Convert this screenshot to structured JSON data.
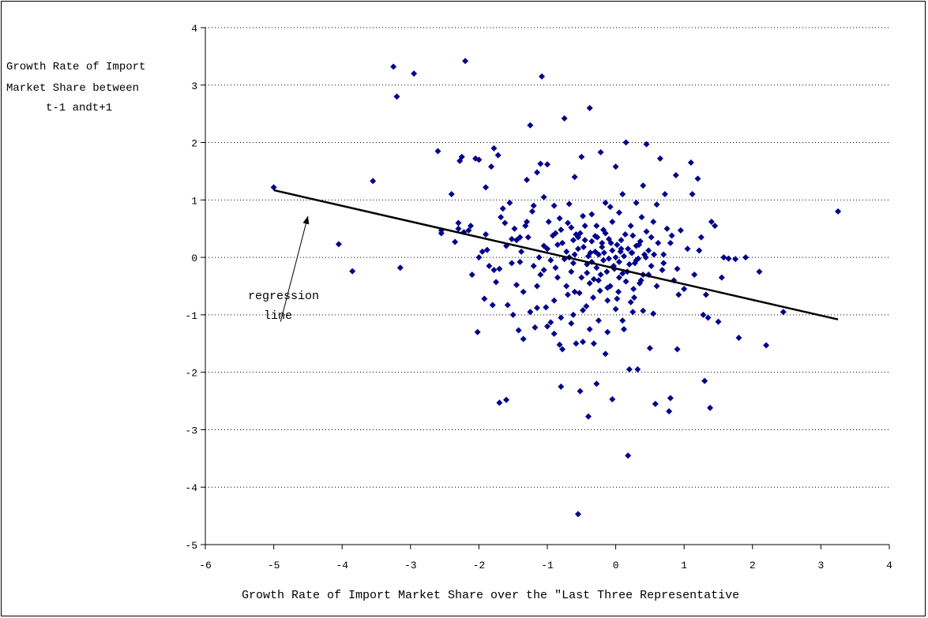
{
  "chart_data": {
    "type": "scatter",
    "title": "",
    "xlabel": "Growth Rate of Import Market Share over the \"Last Three Representative",
    "ylabel_lines": [
      "Growth Rate of Import",
      "Market Share between",
      "t-1 andt+1"
    ],
    "xlim": [
      -6,
      4
    ],
    "ylim": [
      -5,
      4
    ],
    "x_ticks": [
      "-6",
      "-5",
      "-4",
      "-3",
      "-2",
      "-1",
      "0",
      "1",
      "2",
      "3",
      "4"
    ],
    "y_ticks": [
      "-5",
      "-4",
      "-3",
      "-2",
      "-1",
      "0",
      "1",
      "2",
      "3",
      "4"
    ],
    "grid": "horizontal dotted",
    "legend": "none",
    "colors": {
      "points": "#00008B",
      "line": "#000000",
      "grid": "#000000"
    },
    "regression_line": {
      "x": [
        -5.0,
        3.25
      ],
      "y": [
        1.17,
        -1.08
      ]
    },
    "annotation": {
      "text_lines": [
        "regression",
        "line"
      ],
      "arrow_to": [
        -4.5,
        0.72
      ],
      "arrow_from": [
        -4.9,
        -1.12
      ]
    },
    "points": [
      [
        -5.0,
        1.22
      ],
      [
        -4.05,
        0.23
      ],
      [
        -3.85,
        -0.24
      ],
      [
        -3.55,
        1.33
      ],
      [
        -3.25,
        3.32
      ],
      [
        -3.15,
        -0.18
      ],
      [
        -3.2,
        2.8
      ],
      [
        -2.95,
        3.2
      ],
      [
        -2.6,
        1.85
      ],
      [
        -2.55,
        0.42
      ],
      [
        -2.55,
        0.47
      ],
      [
        -2.4,
        1.1
      ],
      [
        -2.35,
        0.27
      ],
      [
        -2.3,
        0.5
      ],
      [
        -2.28,
        1.68
      ],
      [
        -2.25,
        1.75
      ],
      [
        -2.22,
        0.44
      ],
      [
        -2.2,
        3.42
      ],
      [
        -2.15,
        0.47
      ],
      [
        -2.12,
        0.55
      ],
      [
        -2.05,
        1.72
      ],
      [
        -2.02,
        -1.3
      ],
      [
        -2.0,
        1.7
      ],
      [
        -1.95,
        0.1
      ],
      [
        -1.92,
        -0.72
      ],
      [
        -1.9,
        1.22
      ],
      [
        -1.88,
        0.13
      ],
      [
        -1.85,
        -0.15
      ],
      [
        -1.82,
        1.58
      ],
      [
        -1.8,
        -0.83
      ],
      [
        -1.78,
        1.9
      ],
      [
        -1.75,
        -0.43
      ],
      [
        -1.72,
        1.78
      ],
      [
        -1.7,
        -2.53
      ],
      [
        -1.68,
        0.7
      ],
      [
        -1.65,
        0.85
      ],
      [
        -1.6,
        -2.48
      ],
      [
        -1.55,
        0.95
      ],
      [
        -1.52,
        0.32
      ],
      [
        -1.5,
        -1.0
      ],
      [
        -1.48,
        0.5
      ],
      [
        -1.45,
        -0.48
      ],
      [
        -1.42,
        -1.27
      ],
      [
        -1.4,
        -0.08
      ],
      [
        -1.38,
        0.1
      ],
      [
        -1.35,
        -1.42
      ],
      [
        -1.32,
        0.55
      ],
      [
        -1.3,
        1.35
      ],
      [
        -1.28,
        0.35
      ],
      [
        -1.25,
        2.3
      ],
      [
        -1.22,
        0.8
      ],
      [
        -1.2,
        -0.15
      ],
      [
        -1.18,
        -1.22
      ],
      [
        -1.15,
        1.48
      ],
      [
        -1.12,
        0.0
      ],
      [
        -1.1,
        1.63
      ],
      [
        -1.1,
        -0.3
      ],
      [
        -1.08,
        3.15
      ],
      [
        -1.05,
        0.2
      ],
      [
        -1.02,
        -0.87
      ],
      [
        -1.0,
        1.62
      ],
      [
        -0.98,
        0.62
      ],
      [
        -0.95,
        -1.13
      ],
      [
        -0.92,
        0.38
      ],
      [
        -0.9,
        -1.33
      ],
      [
        -0.88,
        -0.18
      ],
      [
        -0.85,
        0.22
      ],
      [
        -0.82,
        -1.52
      ],
      [
        -0.8,
        -2.25
      ],
      [
        -0.78,
        -1.6
      ],
      [
        -0.75,
        2.42
      ],
      [
        -0.72,
        0.1
      ],
      [
        -0.7,
        -0.65
      ],
      [
        -0.68,
        0.93
      ],
      [
        -0.65,
        -1.15
      ],
      [
        -0.62,
        0.3
      ],
      [
        -0.6,
        -0.6
      ],
      [
        -0.58,
        -1.5
      ],
      [
        -0.55,
        0.35
      ],
      [
        -0.52,
        -2.33
      ],
      [
        -0.5,
        1.75
      ],
      [
        -0.48,
        -1.47
      ],
      [
        -0.45,
        0.55
      ],
      [
        -0.42,
        -0.27
      ],
      [
        -0.4,
        -2.77
      ],
      [
        -0.38,
        2.6
      ],
      [
        -0.35,
        -0.08
      ],
      [
        -0.32,
        -1.5
      ],
      [
        -0.3,
        0.37
      ],
      [
        -0.28,
        -2.2
      ],
      [
        -0.25,
        -0.4
      ],
      [
        -0.22,
        1.83
      ],
      [
        -0.2,
        0.25
      ],
      [
        -0.18,
        0.48
      ],
      [
        -0.15,
        -1.68
      ],
      [
        -0.12,
        -0.53
      ],
      [
        -0.1,
        -0.02
      ],
      [
        -0.08,
        0.88
      ],
      [
        -0.05,
        -2.47
      ],
      [
        -0.02,
        -0.2
      ],
      [
        0.0,
        1.58
      ],
      [
        0.02,
        -0.72
      ],
      [
        0.05,
        -0.35
      ],
      [
        0.08,
        0.15
      ],
      [
        0.1,
        1.1
      ],
      [
        0.12,
        -1.25
      ],
      [
        0.15,
        2.0
      ],
      [
        0.18,
        -3.45
      ],
      [
        0.2,
        -1.95
      ],
      [
        0.22,
        -0.78
      ],
      [
        0.25,
        0.38
      ],
      [
        0.28,
        -0.1
      ],
      [
        0.3,
        0.95
      ],
      [
        0.32,
        -1.95
      ],
      [
        0.35,
        -0.45
      ],
      [
        0.38,
        0.7
      ],
      [
        0.4,
        -0.93
      ],
      [
        0.42,
        0.05
      ],
      [
        0.45,
        1.97
      ],
      [
        0.48,
        -0.3
      ],
      [
        0.5,
        -1.58
      ],
      [
        0.52,
        0.35
      ],
      [
        0.55,
        -0.98
      ],
      [
        0.58,
        -2.55
      ],
      [
        0.6,
        0.92
      ],
      [
        0.62,
        0.25
      ],
      [
        0.65,
        1.72
      ],
      [
        0.68,
        -0.22
      ],
      [
        0.7,
        0.05
      ],
      [
        0.72,
        1.1
      ],
      [
        0.75,
        0.5
      ],
      [
        0.78,
        -2.68
      ],
      [
        0.8,
        -2.45
      ],
      [
        0.82,
        0.38
      ],
      [
        0.85,
        -0.4
      ],
      [
        0.88,
        1.43
      ],
      [
        0.9,
        -1.6
      ],
      [
        0.92,
        -0.65
      ],
      [
        0.95,
        0.47
      ],
      [
        1.0,
        -0.55
      ],
      [
        1.1,
        1.65
      ],
      [
        1.12,
        1.1
      ],
      [
        1.2,
        1.37
      ],
      [
        1.22,
        0.12
      ],
      [
        1.25,
        0.35
      ],
      [
        1.28,
        -1.0
      ],
      [
        1.3,
        -2.15
      ],
      [
        1.32,
        -0.65
      ],
      [
        1.35,
        -1.05
      ],
      [
        1.38,
        -2.62
      ],
      [
        1.4,
        0.62
      ],
      [
        1.45,
        0.55
      ],
      [
        1.5,
        -1.12
      ],
      [
        1.55,
        -0.35
      ],
      [
        1.58,
        0.0
      ],
      [
        1.65,
        -0.02
      ],
      [
        1.75,
        -0.03
      ],
      [
        1.8,
        -1.4
      ],
      [
        1.9,
        0.0
      ],
      [
        2.1,
        -0.25
      ],
      [
        2.2,
        -1.53
      ],
      [
        2.45,
        -0.95
      ],
      [
        3.25,
        0.8
      ],
      [
        -0.55,
        -4.47
      ],
      [
        -1.58,
        -0.83
      ],
      [
        -1.15,
        -0.88
      ],
      [
        -0.9,
        0.9
      ],
      [
        -0.8,
        0.48
      ],
      [
        -0.75,
        -0.03
      ],
      [
        -0.7,
        0.6
      ],
      [
        -0.65,
        -0.25
      ],
      [
        -0.6,
        0.05
      ],
      [
        -0.55,
        0.15
      ],
      [
        -0.52,
        0.42
      ],
      [
        -0.5,
        -0.35
      ],
      [
        -0.48,
        0.72
      ],
      [
        -0.45,
        0.3
      ],
      [
        -0.42,
        -0.12
      ],
      [
        -0.4,
        0.02
      ],
      [
        -0.38,
        -0.45
      ],
      [
        -0.35,
        0.28
      ],
      [
        -0.33,
        -0.7
      ],
      [
        -0.3,
        0.1
      ],
      [
        -0.28,
        -0.18
      ],
      [
        -0.25,
        0.05
      ],
      [
        -0.22,
        -0.3
      ],
      [
        -0.2,
        0.18
      ],
      [
        -0.18,
        -0.05
      ],
      [
        -0.15,
        0.42
      ],
      [
        -0.13,
        -0.25
      ],
      [
        -0.1,
        0.32
      ],
      [
        -0.08,
        -0.5
      ],
      [
        -0.05,
        0.12
      ],
      [
        -0.03,
        -0.15
      ],
      [
        0.0,
        0.0
      ],
      [
        0.02,
        0.22
      ],
      [
        0.05,
        -0.08
      ],
      [
        0.08,
        0.3
      ],
      [
        0.1,
        -0.28
      ],
      [
        0.12,
        0.02
      ],
      [
        0.15,
        -0.42
      ],
      [
        0.18,
        0.15
      ],
      [
        0.2,
        -0.12
      ],
      [
        0.23,
        0.08
      ],
      [
        0.26,
        -0.55
      ],
      [
        0.3,
        0.2
      ],
      [
        0.33,
        -0.02
      ],
      [
        0.36,
        0.28
      ],
      [
        0.4,
        -0.3
      ],
      [
        0.44,
        0.0
      ],
      [
        0.48,
        0.12
      ],
      [
        0.52,
        -0.15
      ],
      [
        0.56,
        0.05
      ],
      [
        -0.95,
        -0.05
      ],
      [
        -1.0,
        0.15
      ],
      [
        -1.05,
        -0.22
      ],
      [
        -0.85,
        -0.35
      ],
      [
        -0.78,
        0.25
      ],
      [
        -0.72,
        -0.5
      ],
      [
        -0.68,
        0.0
      ],
      [
        -0.62,
        -0.1
      ],
      [
        -0.58,
        0.4
      ],
      [
        -0.53,
        -0.62
      ],
      [
        -0.47,
        0.18
      ],
      [
        -0.43,
        -0.85
      ],
      [
        -0.37,
        0.08
      ],
      [
        -0.32,
        -0.38
      ],
      [
        -0.27,
        0.35
      ],
      [
        -0.23,
        -0.58
      ],
      [
        -0.17,
        0.08
      ],
      [
        -0.12,
        -0.75
      ],
      [
        -0.07,
        0.25
      ],
      [
        0.04,
        -0.6
      ],
      [
        0.07,
        0.1
      ],
      [
        0.14,
        0.4
      ],
      [
        0.17,
        -0.25
      ],
      [
        0.24,
        0.08
      ],
      [
        0.27,
        -0.7
      ],
      [
        0.34,
        0.22
      ],
      [
        0.37,
        -0.4
      ],
      [
        -1.3,
        0.62
      ],
      [
        -1.45,
        0.3
      ],
      [
        -1.2,
        0.9
      ],
      [
        -1.05,
        1.05
      ],
      [
        -0.88,
        0.42
      ],
      [
        -0.82,
        0.68
      ],
      [
        -0.65,
        0.52
      ],
      [
        -0.6,
        1.4
      ],
      [
        -0.35,
        0.75
      ],
      [
        -0.28,
        0.55
      ],
      [
        -0.15,
        0.95
      ],
      [
        -0.05,
        0.62
      ],
      [
        0.05,
        0.78
      ],
      [
        0.22,
        0.55
      ],
      [
        0.4,
        1.25
      ],
      [
        0.55,
        0.62
      ],
      [
        -1.6,
        0.2
      ],
      [
        -1.7,
        -0.2
      ],
      [
        -1.35,
        -0.6
      ],
      [
        -1.25,
        -0.95
      ],
      [
        -1.15,
        -0.5
      ],
      [
        -1.0,
        -1.2
      ],
      [
        -0.9,
        -0.75
      ],
      [
        -0.8,
        -1.05
      ],
      [
        -0.62,
        -1.0
      ],
      [
        -0.48,
        -0.92
      ],
      [
        -0.38,
        -1.25
      ],
      [
        -0.25,
        -1.1
      ],
      [
        -0.12,
        -1.3
      ],
      [
        0.0,
        -0.9
      ],
      [
        0.1,
        -1.1
      ],
      [
        0.25,
        -0.95
      ],
      [
        -2.0,
        0.0
      ],
      [
        -2.1,
        -0.3
      ],
      [
        -2.3,
        0.6
      ],
      [
        -1.9,
        0.4
      ],
      [
        -1.78,
        -0.22
      ],
      [
        -1.62,
        0.6
      ],
      [
        -1.52,
        -0.1
      ],
      [
        -1.4,
        0.35
      ],
      [
        0.3,
        -0.05
      ],
      [
        0.45,
        0.45
      ],
      [
        0.6,
        -0.5
      ],
      [
        0.7,
        -0.1
      ],
      [
        0.8,
        0.25
      ],
      [
        0.9,
        -0.2
      ],
      [
        1.05,
        0.15
      ],
      [
        1.15,
        -0.3
      ]
    ]
  }
}
